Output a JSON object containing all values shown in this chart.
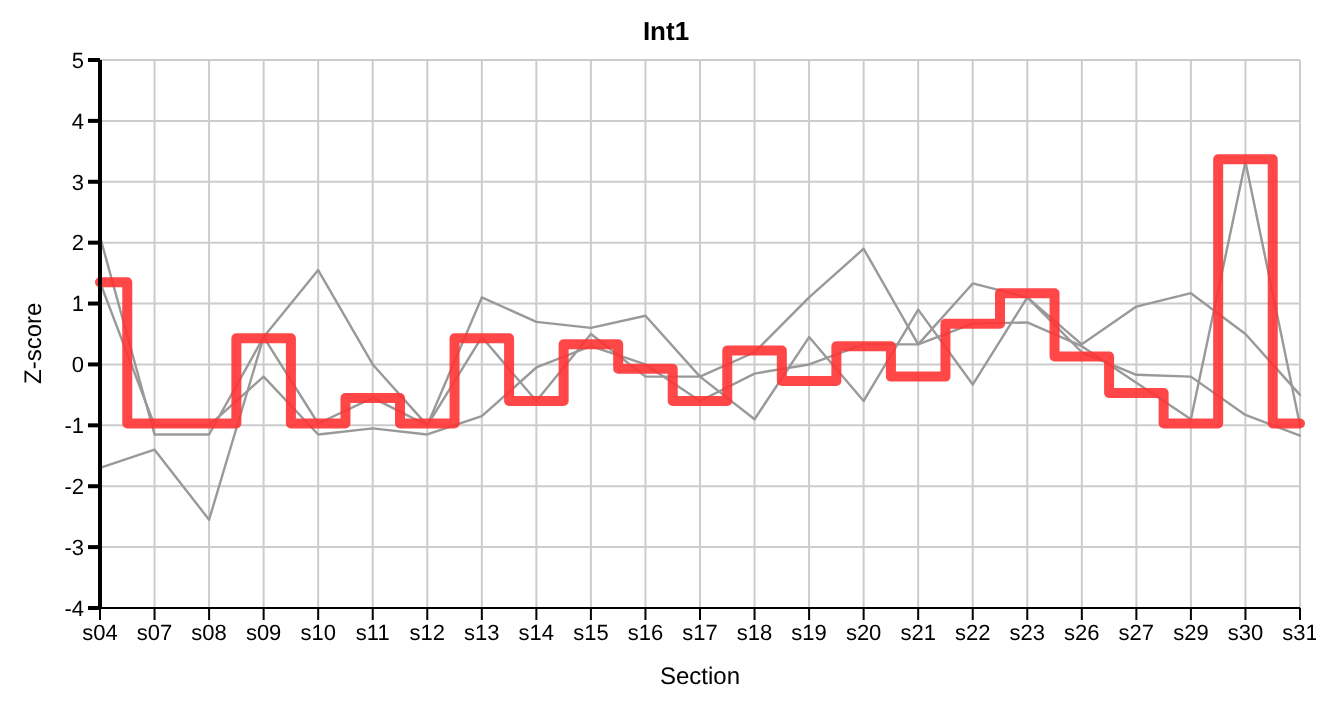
{
  "chart_data": {
    "type": "line",
    "title": "Int1",
    "xlabel": "Section",
    "ylabel": "Z-score",
    "categories": [
      "s04",
      "s07",
      "s08",
      "s09",
      "s10",
      "s11",
      "s12",
      "s13",
      "s14",
      "s15",
      "s16",
      "s17",
      "s18",
      "s19",
      "s20",
      "s21",
      "s22",
      "s23",
      "s26",
      "s27",
      "s29",
      "s30",
      "s31"
    ],
    "series": [
      {
        "color": "#999999",
        "values": [
          2.1,
          -1.15,
          -1.15,
          0.45,
          1.55,
          0.0,
          -1.0,
          1.1,
          0.7,
          0.6,
          0.8,
          -0.2,
          0.2,
          1.1,
          1.9,
          0.33,
          1.33,
          1.1,
          0.33,
          0.95,
          1.17,
          0.5,
          -0.5
        ]
      },
      {
        "color": "#999999",
        "values": [
          -1.7,
          -1.4,
          -2.55,
          0.45,
          -0.97,
          -0.55,
          -1.0,
          0.45,
          -0.6,
          0.5,
          -0.2,
          -0.2,
          -0.9,
          0.45,
          -0.6,
          0.9,
          -0.33,
          1.1,
          0.2,
          -0.17,
          -0.2,
          -0.83,
          -1.17
        ]
      },
      {
        "color": "#999999",
        "values": [
          1.35,
          -1.0,
          -1.0,
          -0.2,
          -1.15,
          -1.05,
          -1.15,
          -0.85,
          -0.05,
          0.3,
          0.0,
          -0.6,
          -0.15,
          0.0,
          0.33,
          0.33,
          0.67,
          0.69,
          0.3,
          -0.3,
          -0.9,
          3.33,
          -1.0
        ]
      },
      {
        "type": "step",
        "color": "#ff3333",
        "values": [
          1.35,
          -0.97,
          -0.97,
          0.43,
          -0.97,
          -0.55,
          -0.97,
          0.43,
          -0.6,
          0.33,
          -0.07,
          -0.6,
          0.23,
          -0.27,
          0.3,
          -0.2,
          0.67,
          1.17,
          0.13,
          -0.47,
          -0.97,
          3.37,
          -0.97
        ]
      }
    ],
    "ylim": [
      -4,
      5
    ],
    "yticks": [
      -4,
      -3,
      -2,
      -1,
      0,
      1,
      2,
      3,
      4,
      5
    ],
    "grid": true,
    "marker": "none"
  }
}
